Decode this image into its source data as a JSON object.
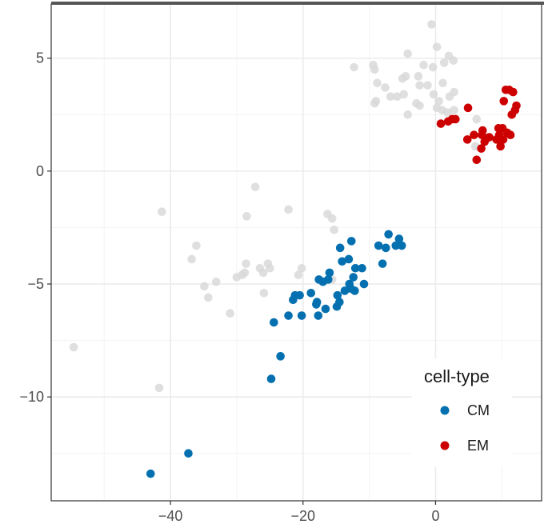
{
  "chart_data": {
    "type": "scatter",
    "title": "",
    "xlabel": "",
    "ylabel": "",
    "xlim": [
      -58,
      16
    ],
    "ylim": [
      -14.6,
      7.4
    ],
    "grid": true,
    "legend": {
      "title": "cell-type",
      "placement": "bottom-right"
    },
    "x_ticks": [
      -40,
      -20,
      0
    ],
    "y_ticks": [
      5,
      0,
      -5,
      -10
    ],
    "x_tick_labels": [
      "−40",
      "−20",
      "0"
    ],
    "y_tick_labels": [
      "5",
      "0",
      "−5",
      "−10"
    ],
    "colors": {
      "background": "#d9d9d9",
      "CM": "#0570b0",
      "EM": "#cc0000"
    },
    "series": [
      {
        "role": "background",
        "values": [
          [
            -0.6,
            6.5
          ],
          [
            -4.2,
            5.2
          ],
          [
            -1.8,
            4.7
          ],
          [
            -0.4,
            4.6
          ],
          [
            0.2,
            5.5
          ],
          [
            1.3,
            4.8
          ],
          [
            2.0,
            5.1
          ],
          [
            2.7,
            4.9
          ],
          [
            -12.3,
            4.6
          ],
          [
            -9.4,
            4.7
          ],
          [
            -9.2,
            4.5
          ],
          [
            -8.8,
            3.9
          ],
          [
            -7.6,
            3.7
          ],
          [
            -6.8,
            3.3
          ],
          [
            -5.0,
            4.1
          ],
          [
            -4.5,
            4.2
          ],
          [
            -2.6,
            4.2
          ],
          [
            -2.4,
            3.8
          ],
          [
            -1.2,
            3.8
          ],
          [
            -0.3,
            3.4
          ],
          [
            1.1,
            3.9
          ],
          [
            2.1,
            3.3
          ],
          [
            2.8,
            3.5
          ],
          [
            -9.0,
            3.1
          ],
          [
            -9.2,
            3.0
          ],
          [
            -5.8,
            3.3
          ],
          [
            -4.8,
            3.4
          ],
          [
            -2.9,
            3.0
          ],
          [
            -2.4,
            2.9
          ],
          [
            -4.2,
            2.5
          ],
          [
            0.5,
            3.1
          ],
          [
            0.2,
            2.8
          ],
          [
            1.0,
            2.7
          ],
          [
            1.8,
            2.6
          ],
          [
            2.8,
            2.7
          ],
          [
            6.2,
            2.3
          ],
          [
            6.0,
            1.1
          ],
          [
            -27.2,
            -0.7
          ],
          [
            -41.3,
            -1.8
          ],
          [
            -28.5,
            -2.0
          ],
          [
            -22.2,
            -1.7
          ],
          [
            -16.3,
            -1.9
          ],
          [
            -15.6,
            -2.1
          ],
          [
            -15.3,
            -2.6
          ],
          [
            -36.1,
            -3.3
          ],
          [
            -36.8,
            -3.9
          ],
          [
            -28.6,
            -4.1
          ],
          [
            -25.3,
            -4.1
          ],
          [
            -26.5,
            -4.3
          ],
          [
            -25.0,
            -4.3
          ],
          [
            -26.0,
            -4.5
          ],
          [
            -28.8,
            -4.5
          ],
          [
            -30.0,
            -4.7
          ],
          [
            -29.2,
            -4.6
          ],
          [
            -20.2,
            -4.3
          ],
          [
            -20.7,
            -4.6
          ],
          [
            -33.1,
            -4.9
          ],
          [
            -34.9,
            -5.1
          ],
          [
            -25.9,
            -5.4
          ],
          [
            -34.3,
            -5.6
          ],
          [
            -15.6,
            -4.8
          ],
          [
            -31.0,
            -6.3
          ],
          [
            -54.6,
            -7.8
          ],
          [
            -41.7,
            -9.6
          ]
        ]
      },
      {
        "name": "CM",
        "values": [
          [
            -7.1,
            -2.8
          ],
          [
            -5.5,
            -3.0
          ],
          [
            -5.1,
            -3.3
          ],
          [
            -7.5,
            -3.4
          ],
          [
            -6.0,
            -3.3
          ],
          [
            -12.7,
            -3.1
          ],
          [
            -8.6,
            -3.3
          ],
          [
            -13.1,
            -3.9
          ],
          [
            -14.4,
            -3.4
          ],
          [
            -16.0,
            -4.5
          ],
          [
            -14.1,
            -4.0
          ],
          [
            -12.1,
            -4.3
          ],
          [
            -12.4,
            -4.7
          ],
          [
            -11.1,
            -4.3
          ],
          [
            -8.0,
            -4.1
          ],
          [
            -13.0,
            -5.0
          ],
          [
            -16.2,
            -4.8
          ],
          [
            -17.6,
            -4.8
          ],
          [
            -17.0,
            -4.9
          ],
          [
            -10.8,
            -5.0
          ],
          [
            -12.2,
            -5.3
          ],
          [
            -12.8,
            -5.2
          ],
          [
            -13.7,
            -5.3
          ],
          [
            -20.5,
            -5.5
          ],
          [
            -21.2,
            -5.5
          ],
          [
            -18.8,
            -5.4
          ],
          [
            -14.8,
            -5.5
          ],
          [
            -21.5,
            -5.7
          ],
          [
            -17.9,
            -5.8
          ],
          [
            -18.0,
            -5.9
          ],
          [
            -14.5,
            -5.8
          ],
          [
            -14.9,
            -6.0
          ],
          [
            -16.6,
            -6.1
          ],
          [
            -22.2,
            -6.4
          ],
          [
            -20.2,
            -6.4
          ],
          [
            -17.7,
            -6.4
          ],
          [
            -24.4,
            -6.7
          ],
          [
            -23.4,
            -8.2
          ],
          [
            -24.8,
            -9.2
          ],
          [
            -37.3,
            -12.5
          ],
          [
            -43.0,
            -13.4
          ]
        ]
      },
      {
        "name": "EM",
        "values": [
          [
            10.6,
            3.6
          ],
          [
            11.1,
            3.6
          ],
          [
            11.7,
            3.5
          ],
          [
            10.3,
            3.1
          ],
          [
            12.2,
            2.9
          ],
          [
            12.0,
            2.7
          ],
          [
            11.5,
            2.5
          ],
          [
            4.9,
            2.8
          ],
          [
            2.5,
            2.3
          ],
          [
            3.0,
            2.3
          ],
          [
            1.9,
            2.2
          ],
          [
            0.8,
            2.1
          ],
          [
            9.5,
            1.9
          ],
          [
            10.1,
            1.9
          ],
          [
            7.1,
            1.8
          ],
          [
            9.6,
            1.6
          ],
          [
            11.3,
            1.6
          ],
          [
            10.8,
            1.7
          ],
          [
            5.8,
            1.6
          ],
          [
            4.8,
            1.4
          ],
          [
            7.0,
            1.6
          ],
          [
            7.4,
            1.3
          ],
          [
            8.1,
            1.5
          ],
          [
            9.2,
            1.4
          ],
          [
            10.2,
            1.4
          ],
          [
            9.8,
            1.1
          ],
          [
            6.9,
            1.0
          ],
          [
            6.2,
            0.5
          ]
        ]
      }
    ]
  }
}
